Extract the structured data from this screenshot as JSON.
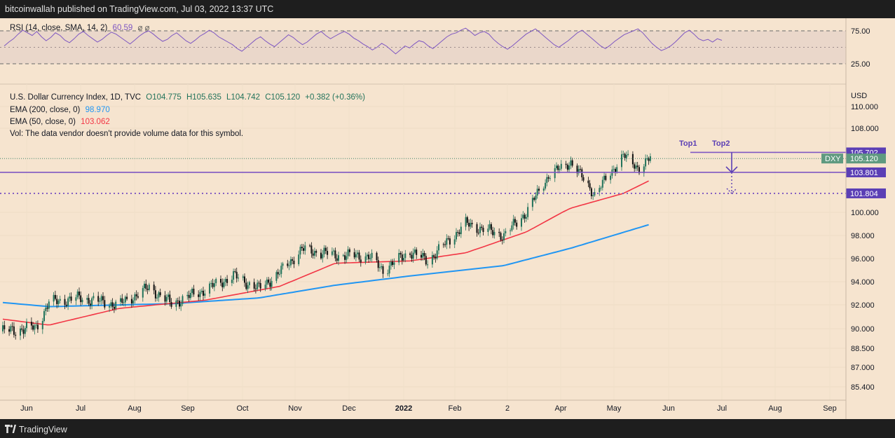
{
  "header": {
    "publisher_line": "bitcoinwallah published on TradingView.com, Jul 03, 2022 13:37 UTC"
  },
  "footer": {
    "brand": "TradingView",
    "logo_icon": "tradingview-logo-icon"
  },
  "colors": {
    "background": "#f6e4cf",
    "rsi_band": "#e6d2c8",
    "rsi_line": "#7e57c2",
    "ema200": "#2196f3",
    "ema50": "#f23645",
    "up": "#22735b",
    "down": "#111111",
    "level": "#7e57c2",
    "axis_text": "#131722"
  },
  "rsi_panel": {
    "legend": "RSI (14, close, SMA, 14, 2)",
    "value": "60.59",
    "extra": "⌀  ⌀",
    "ticks": [
      "75.00",
      "25.00"
    ]
  },
  "price_panel": {
    "title": "U.S. Dollar Currency Index, 1D, TVC",
    "ohlc": {
      "open": "O104.775",
      "high": "H105.635",
      "low": "L104.742",
      "close": "C105.120",
      "change": "+0.382 (+0.36%)"
    },
    "ema200_label": "EMA (200, close, 0)",
    "ema200_value": "98.970",
    "ema50_label": "EMA (50, close, 0)",
    "ema50_value": "103.062",
    "vol_note": "Vol: The data vendor doesn't provide volume data for this symbol.",
    "currency": "USD",
    "symbol_tag": "DXY"
  },
  "chart_data": {
    "type": "candlestick",
    "title": "U.S. Dollar Currency Index, 1D, TVC",
    "x_ticks": [
      "Jun",
      "Jul",
      "Aug",
      "Sep",
      "Oct",
      "Nov",
      "Dec",
      "2022",
      "Feb",
      "2",
      "Apr",
      "May",
      "Jun",
      "Jul",
      "Aug",
      "Sep"
    ],
    "y_ticks": [
      "110.000",
      "108.000",
      "100.000",
      "98.000",
      "96.000",
      "94.000",
      "92.000",
      "90.000",
      "88.500",
      "87.000",
      "85.400"
    ],
    "y_tick_values": [
      110,
      108,
      100,
      98,
      96,
      94,
      92,
      90,
      88.5,
      87,
      85.4
    ],
    "levels": [
      {
        "value": 105.702,
        "label": "105.702",
        "style": "solid"
      },
      {
        "value": 103.801,
        "label": "103.801",
        "style": "solid"
      },
      {
        "value": 101.804,
        "label": "101.804",
        "style": "dotted"
      }
    ],
    "last_price": {
      "value": 105.12,
      "label": "105.120"
    },
    "annotations": [
      "Top1",
      "Top2"
    ],
    "close_series": {
      "start": "2021-05-20",
      "end": "2022-07-01",
      "knots": [
        {
          "date": "2021-05-20",
          "close": 89.8
        },
        {
          "date": "2021-06-10",
          "close": 90.1
        },
        {
          "date": "2021-06-18",
          "close": 92.2
        },
        {
          "date": "2021-07-07",
          "close": 92.6
        },
        {
          "date": "2021-08-01",
          "close": 92.0
        },
        {
          "date": "2021-08-20",
          "close": 93.5
        },
        {
          "date": "2021-09-03",
          "close": 92.1
        },
        {
          "date": "2021-09-24",
          "close": 93.3
        },
        {
          "date": "2021-10-12",
          "close": 94.5
        },
        {
          "date": "2021-10-28",
          "close": 93.4
        },
        {
          "date": "2021-11-10",
          "close": 94.8
        },
        {
          "date": "2021-11-24",
          "close": 96.8
        },
        {
          "date": "2021-12-15",
          "close": 96.3
        },
        {
          "date": "2022-01-05",
          "close": 96.2
        },
        {
          "date": "2022-01-14",
          "close": 95.0
        },
        {
          "date": "2022-01-31",
          "close": 96.6
        },
        {
          "date": "2022-02-11",
          "close": 95.8
        },
        {
          "date": "2022-03-07",
          "close": 99.0
        },
        {
          "date": "2022-03-31",
          "close": 98.0
        },
        {
          "date": "2022-04-14",
          "close": 100.0
        },
        {
          "date": "2022-04-28",
          "close": 103.5
        },
        {
          "date": "2022-05-12",
          "close": 104.8
        },
        {
          "date": "2022-05-27",
          "close": 101.7
        },
        {
          "date": "2022-06-14",
          "close": 105.4
        },
        {
          "date": "2022-06-24",
          "close": 104.2
        },
        {
          "date": "2022-07-01",
          "close": 105.12
        }
      ]
    },
    "ema200_series": {
      "knots": [
        {
          "date": "2021-05-20",
          "value": 92.2
        },
        {
          "date": "2021-06-18",
          "value": 91.85
        },
        {
          "date": "2021-09-03",
          "value": 92.1
        },
        {
          "date": "2021-10-28",
          "value": 92.6
        },
        {
          "date": "2021-12-15",
          "value": 93.7
        },
        {
          "date": "2022-01-31",
          "value": 94.5
        },
        {
          "date": "2022-03-31",
          "value": 95.4
        },
        {
          "date": "2022-05-12",
          "value": 96.9
        },
        {
          "date": "2022-07-01",
          "value": 98.97
        }
      ]
    },
    "ema50_series": {
      "knots": [
        {
          "date": "2021-05-20",
          "value": 90.8
        },
        {
          "date": "2021-06-18",
          "value": 90.3
        },
        {
          "date": "2021-08-01",
          "value": 91.7
        },
        {
          "date": "2021-09-24",
          "value": 92.4
        },
        {
          "date": "2021-11-10",
          "value": 93.6
        },
        {
          "date": "2021-12-15",
          "value": 95.6
        },
        {
          "date": "2022-01-31",
          "value": 95.8
        },
        {
          "date": "2022-03-07",
          "value": 96.5
        },
        {
          "date": "2022-04-14",
          "value": 98.3
        },
        {
          "date": "2022-05-12",
          "value": 100.4
        },
        {
          "date": "2022-06-14",
          "value": 101.8
        },
        {
          "date": "2022-07-01",
          "value": 103.06
        }
      ]
    },
    "rsi_series": {
      "last": 60.59,
      "values": [
        52,
        58,
        63,
        70,
        76,
        72,
        68,
        74,
        66,
        60,
        65,
        72,
        68,
        61,
        57,
        63,
        70,
        74,
        68,
        63,
        58,
        62,
        68,
        73,
        70,
        65,
        60,
        55,
        61,
        67,
        72,
        75,
        70,
        64,
        59,
        62,
        68,
        72,
        66,
        60,
        56,
        61,
        67,
        71,
        76,
        72,
        66,
        62,
        58,
        54,
        48,
        44,
        50,
        56,
        62,
        66,
        60,
        55,
        51,
        57,
        63,
        69,
        65,
        59,
        54,
        58,
        64,
        70,
        74,
        68,
        63,
        67,
        71,
        74,
        70,
        64,
        60,
        55,
        51,
        46,
        50,
        56,
        52,
        46,
        40,
        46,
        52,
        49,
        55,
        60,
        58,
        52,
        48,
        54,
        60,
        66,
        70,
        72,
        76,
        79,
        74,
        68,
        72,
        74,
        70,
        62,
        56,
        51,
        47,
        52,
        58,
        64,
        70,
        74,
        78,
        72,
        66,
        60,
        54,
        50,
        55,
        60,
        66,
        72,
        76,
        70,
        64,
        58,
        52,
        48,
        53,
        59,
        64,
        69,
        72,
        75,
        78,
        72,
        64,
        56,
        50,
        45,
        48,
        52,
        58,
        65,
        72,
        76,
        70,
        63,
        60,
        62,
        58,
        63,
        60.59
      ]
    }
  }
}
